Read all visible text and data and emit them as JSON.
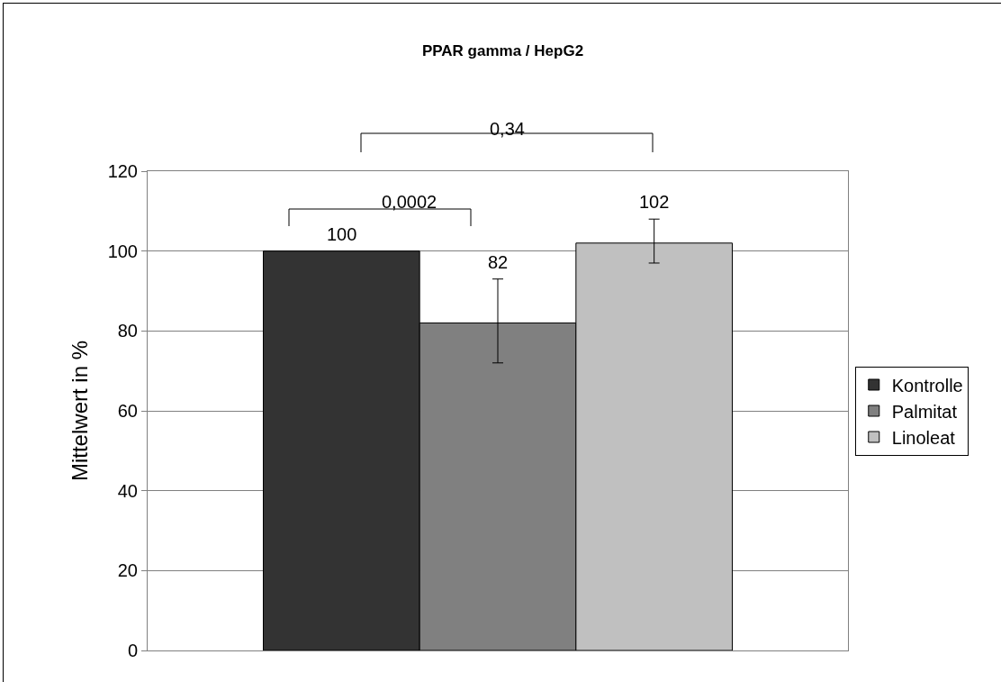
{
  "chart_data": {
    "type": "bar",
    "title": "PPAR gamma / HepG2",
    "ylabel": "Mittelwert in %",
    "categories": [
      null
    ],
    "series": [
      {
        "name": "Kontrolle",
        "color": "#333333",
        "values": [
          100
        ]
      },
      {
        "name": "Palmitat",
        "color": "#808080",
        "values": [
          82
        ],
        "errors": [
          [
            72,
            93
          ]
        ]
      },
      {
        "name": "Linoleat",
        "color": "#c0c0c0",
        "values": [
          102
        ],
        "errors": [
          [
            97,
            108
          ]
        ]
      }
    ],
    "ylim": [
      0,
      120
    ],
    "yticks": [
      0,
      20,
      40,
      60,
      80,
      100,
      120
    ],
    "grid": "y",
    "legend": "right",
    "data_labels": true,
    "tick_labels": "y",
    "annotations": [
      "0,0002",
      "0,34"
    ]
  }
}
